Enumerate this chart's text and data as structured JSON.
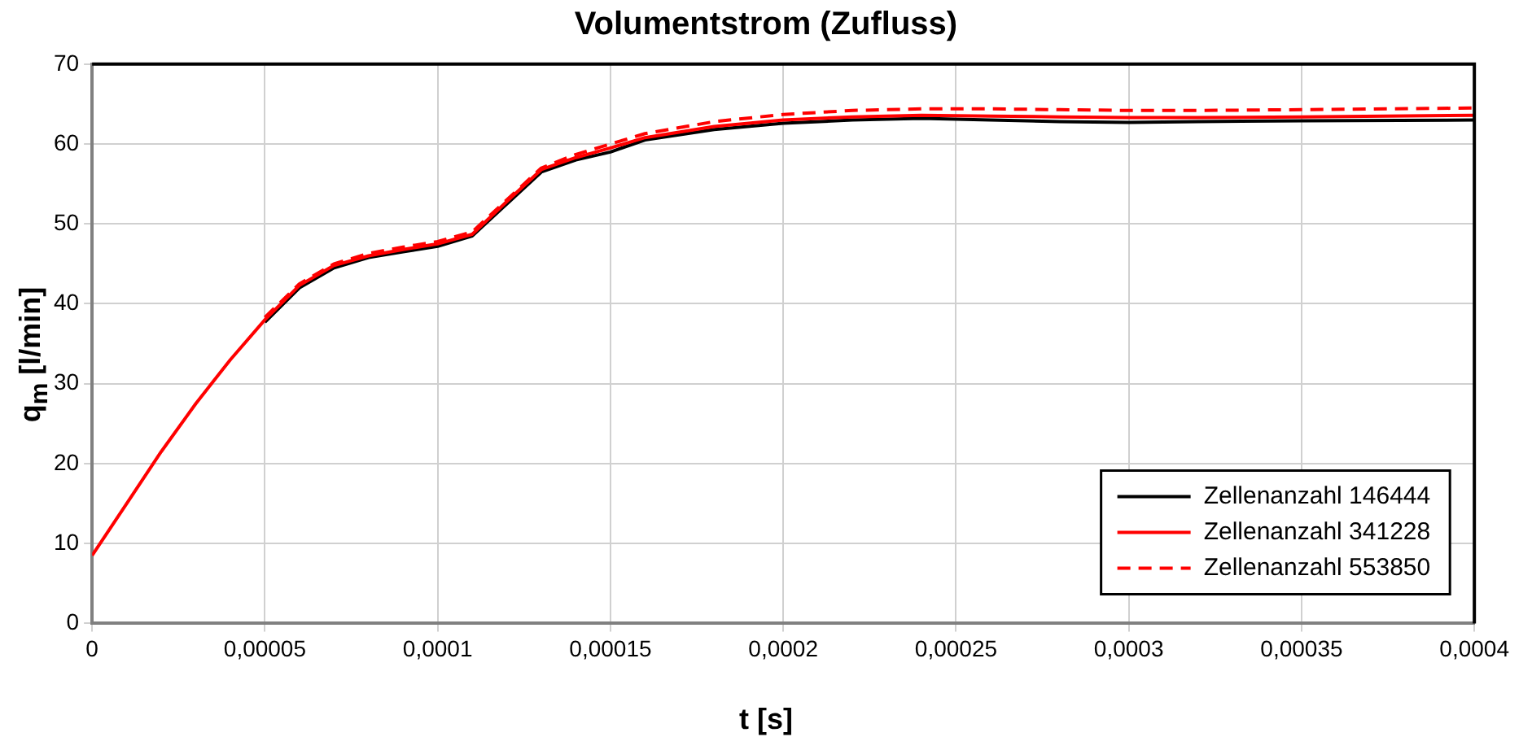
{
  "chart_data": {
    "type": "line",
    "title": "Volumentstrom (Zufluss)",
    "xlabel": "t [s]",
    "ylabel": "q$_{m}$ [l/min]",
    "x": [
      0,
      1e-05,
      2e-05,
      3e-05,
      4e-05,
      5e-05,
      6e-05,
      7e-05,
      8e-05,
      9e-05,
      0.0001,
      0.00011,
      0.00012,
      0.00013,
      0.00014,
      0.00015,
      0.00016,
      0.00018,
      0.0002,
      0.00022,
      0.00024,
      0.00026,
      0.00028,
      0.0003,
      0.00032,
      0.00035,
      0.0004
    ],
    "series": [
      {
        "name": "Zellenanzahl 146444",
        "color": "#000000",
        "line_style": "solid",
        "values": [
          null,
          null,
          null,
          null,
          null,
          37.7,
          42,
          44.5,
          45.8,
          46.5,
          47.2,
          48.5,
          52.5,
          56.5,
          58,
          59,
          60.5,
          61.8,
          62.6,
          63,
          63.2,
          63,
          62.8,
          62.7,
          62.8,
          62.9,
          63
        ]
      },
      {
        "name": "Zellenanzahl 341228",
        "color": "#ff0000",
        "line_style": "solid",
        "values": [
          8.5,
          15,
          21.5,
          27.5,
          33,
          38,
          42.3,
          44.8,
          46,
          46.8,
          47.5,
          48.7,
          52.8,
          56.8,
          58.3,
          59.5,
          60.8,
          62.2,
          63,
          63.4,
          63.6,
          63.5,
          63.4,
          63.3,
          63.3,
          63.4,
          63.6
        ]
      },
      {
        "name": "Zellenanzahl 553850",
        "color": "#ff0000",
        "line_style": "dashed",
        "values": [
          null,
          null,
          null,
          null,
          null,
          38.3,
          42.5,
          45,
          46.3,
          47.1,
          47.8,
          49,
          53,
          57,
          58.7,
          60,
          61.3,
          62.8,
          63.7,
          64.2,
          64.4,
          64.4,
          64.3,
          64.2,
          64.2,
          64.3,
          64.5
        ]
      }
    ],
    "xlim": [
      0,
      0.0004
    ],
    "xticks": [
      0,
      {
        "value": 5e-05,
        "label": "0,00005"
      },
      {
        "value": 0.0001,
        "label": "0,0001"
      },
      {
        "value": 0.00015,
        "label": "0,00015"
      },
      {
        "value": 0.0002,
        "label": "0,0002"
      },
      {
        "value": 0.00025,
        "label": "0,00025"
      },
      {
        "value": 0.0003,
        "label": "0,0003"
      },
      {
        "value": 0.00035,
        "label": "0,00035"
      },
      {
        "value": 0.0004,
        "label": "0,0004"
      }
    ],
    "ylim": [
      0,
      70
    ],
    "yticks": [
      0,
      10,
      20,
      30,
      40,
      50,
      60,
      70
    ],
    "grid": true,
    "legend": "bottom right",
    "marker": "none"
  }
}
